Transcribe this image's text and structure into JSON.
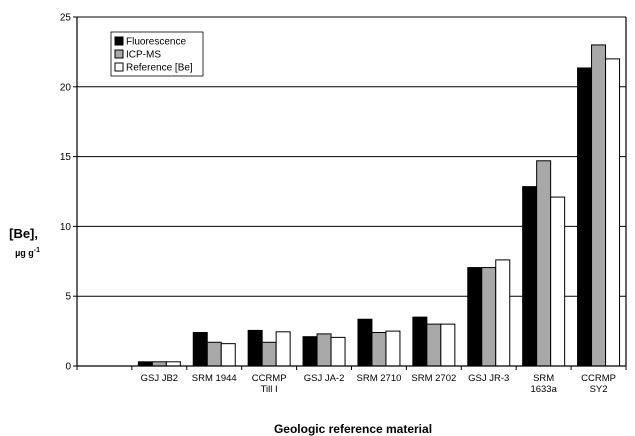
{
  "chart_data": {
    "type": "bar",
    "xlabel": "Geologic reference material",
    "ylabel_main": "[Be],",
    "ylabel_unit": "µg g",
    "ylabel_unit_sup": "-1",
    "ylim": [
      0,
      25
    ],
    "yticks": [
      "0",
      "5",
      "10",
      "15",
      "20",
      "25"
    ],
    "grid": true,
    "legend_position": "top-left",
    "categories": [
      [
        ""
      ],
      [
        "GSJ JB2"
      ],
      [
        "SRM 1944"
      ],
      [
        "CCRMP",
        "Till I"
      ],
      [
        "GSJ JA-2"
      ],
      [
        "SRM 2710"
      ],
      [
        "SRM 2702"
      ],
      [
        "GSJ JR-3"
      ],
      [
        "SRM",
        "1633a"
      ],
      [
        "CCRMP",
        "SY2"
      ]
    ],
    "series": [
      {
        "name": "Fluorescence",
        "color": "#000000",
        "values": [
          null,
          0.3,
          2.4,
          2.55,
          2.1,
          3.35,
          3.5,
          7.05,
          12.85,
          21.35
        ]
      },
      {
        "name": "ICP-MS",
        "color": "#a8a8a8",
        "values": [
          null,
          0.3,
          1.7,
          1.7,
          2.3,
          2.4,
          3.0,
          7.05,
          14.7,
          23.0
        ]
      },
      {
        "name": "Reference [Be]",
        "color": "#ffffff",
        "values": [
          null,
          0.3,
          1.6,
          2.45,
          2.05,
          2.5,
          3.0,
          7.6,
          12.1,
          22.0
        ]
      }
    ]
  }
}
